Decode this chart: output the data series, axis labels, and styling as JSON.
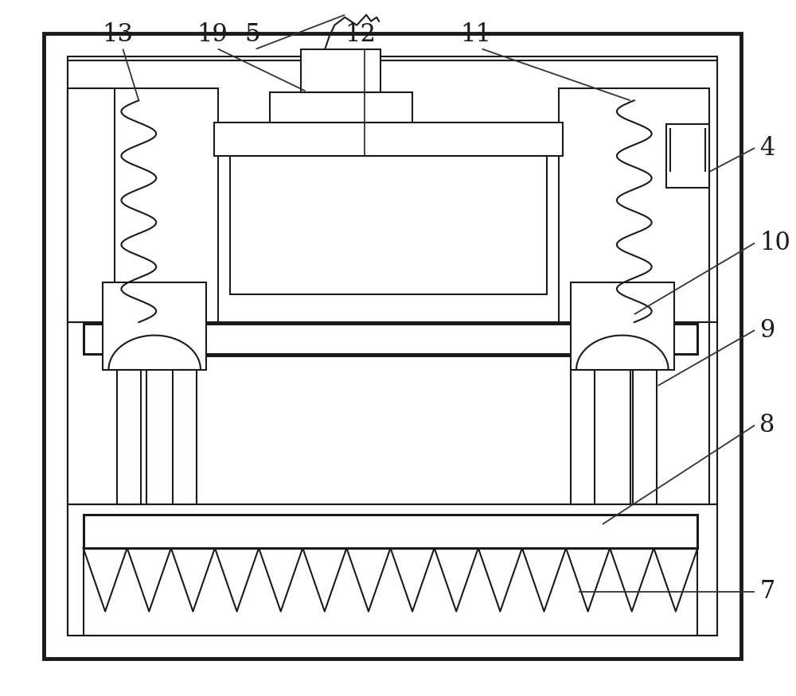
{
  "bg_color": "#ffffff",
  "lc": "#1a1a1a",
  "lw_thin": 1.5,
  "lw_med": 2.2,
  "lw_thick": 3.5,
  "label_fs": 22,
  "label_color": "#1a1a1a",
  "leader_lw": 1.3,
  "leader_color": "#333333"
}
